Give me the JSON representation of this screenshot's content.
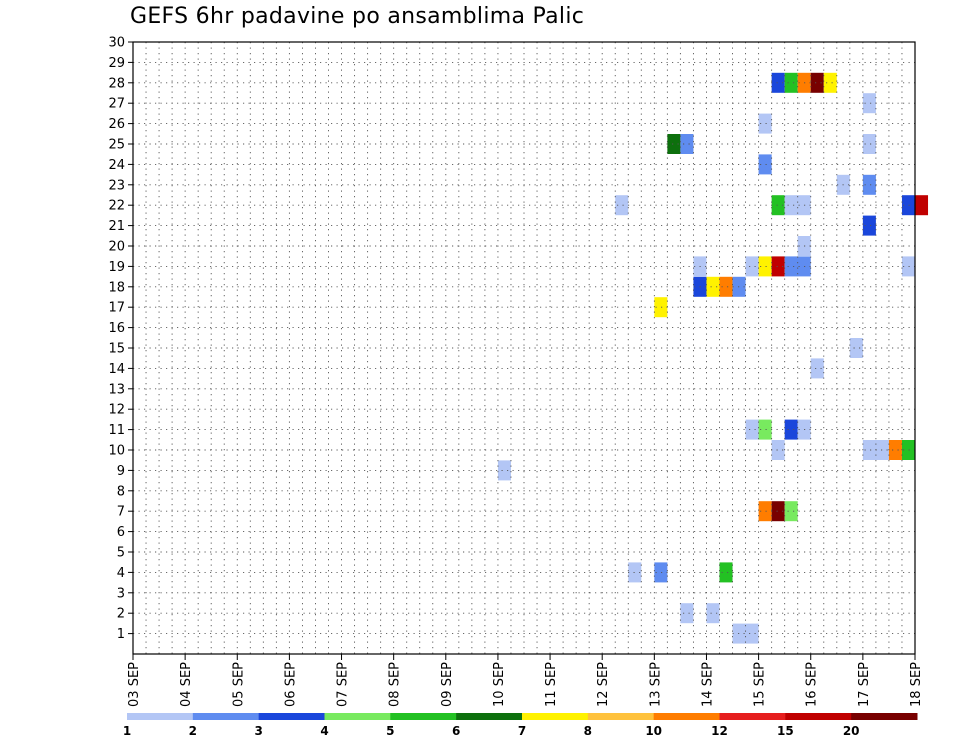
{
  "chart_data": {
    "type": "heatmap",
    "title": "GEFS 6hr padavine po ansamblima Palic",
    "x_dates": [
      "03 SEP",
      "04 SEP",
      "05 SEP",
      "06 SEP",
      "07 SEP",
      "08 SEP",
      "09 SEP",
      "10 SEP",
      "11 SEP",
      "12 SEP",
      "13 SEP",
      "14 SEP",
      "15 SEP",
      "16 SEP",
      "17 SEP",
      "18 SEP"
    ],
    "y_members": [
      1,
      2,
      3,
      4,
      5,
      6,
      7,
      8,
      9,
      10,
      11,
      12,
      13,
      14,
      15,
      16,
      17,
      18,
      19,
      20,
      21,
      22,
      23,
      24,
      25,
      26,
      27,
      28,
      29,
      30
    ],
    "x_unit": "6-hour step from 03 SEP",
    "ylim": [
      0,
      30
    ],
    "grid": true,
    "legend": {
      "position": "bottom",
      "labels": [
        "1",
        "2",
        "3",
        "4",
        "5",
        "6",
        "7",
        "8",
        "10",
        "12",
        "15",
        "20"
      ],
      "colors": [
        "#b3c6f5",
        "#5f8cf0",
        "#1a46db",
        "#78ea5f",
        "#23c123",
        "#0d700d",
        "#fff200",
        "#ffc23c",
        "#ff7d00",
        "#e61e1e",
        "#c00000",
        "#780000"
      ]
    },
    "cells": [
      {
        "member": 1,
        "step": 46,
        "span": 2,
        "value": 1
      },
      {
        "member": 2,
        "step": 42,
        "value": 1
      },
      {
        "member": 2,
        "step": 44,
        "value": 1
      },
      {
        "member": 4,
        "step": 38,
        "value": 1
      },
      {
        "member": 4,
        "step": 40,
        "value": 2
      },
      {
        "member": 4,
        "step": 45,
        "value": 5
      },
      {
        "member": 7,
        "step": 48,
        "value": 10
      },
      {
        "member": 7,
        "step": 49,
        "value": 20
      },
      {
        "member": 7,
        "step": 50,
        "value": 4
      },
      {
        "member": 9,
        "step": 28,
        "value": 1
      },
      {
        "member": 10,
        "step": 49,
        "value": 1
      },
      {
        "member": 10,
        "step": 56,
        "span": 2,
        "value": 1
      },
      {
        "member": 10,
        "step": 58,
        "value": 10
      },
      {
        "member": 10,
        "step": 59,
        "value": 5
      },
      {
        "member": 11,
        "step": 47,
        "value": 1
      },
      {
        "member": 11,
        "step": 48,
        "value": 4
      },
      {
        "member": 11,
        "step": 50,
        "value": 3
      },
      {
        "member": 11,
        "step": 51,
        "value": 1
      },
      {
        "member": 14,
        "step": 52,
        "value": 1
      },
      {
        "member": 15,
        "step": 55,
        "value": 1
      },
      {
        "member": 17,
        "step": 40,
        "value": 7
      },
      {
        "member": 18,
        "step": 43,
        "value": 3
      },
      {
        "member": 18,
        "step": 44,
        "value": 7
      },
      {
        "member": 18,
        "step": 45,
        "value": 10
      },
      {
        "member": 18,
        "step": 46,
        "value": 2
      },
      {
        "member": 19,
        "step": 43,
        "value": 1
      },
      {
        "member": 19,
        "step": 47,
        "value": 1
      },
      {
        "member": 19,
        "step": 48,
        "value": 7
      },
      {
        "member": 19,
        "step": 49,
        "value": 15
      },
      {
        "member": 19,
        "step": 50,
        "span": 2,
        "value": 2
      },
      {
        "member": 19,
        "step": 59,
        "value": 1
      },
      {
        "member": 20,
        "step": 51,
        "value": 1
      },
      {
        "member": 21,
        "step": 56,
        "value": 3
      },
      {
        "member": 22,
        "step": 37,
        "value": 1
      },
      {
        "member": 22,
        "step": 49,
        "value": 5
      },
      {
        "member": 22,
        "step": 50,
        "span": 2,
        "value": 1
      },
      {
        "member": 22,
        "step": 59,
        "value": 3
      },
      {
        "member": 22,
        "step": 60,
        "value": 15
      },
      {
        "member": 23,
        "step": 54,
        "value": 1
      },
      {
        "member": 23,
        "step": 56,
        "value": 2
      },
      {
        "member": 24,
        "step": 48,
        "value": 2
      },
      {
        "member": 25,
        "step": 41,
        "value": 6
      },
      {
        "member": 25,
        "step": 42,
        "value": 2
      },
      {
        "member": 25,
        "step": 56,
        "value": 1
      },
      {
        "member": 26,
        "step": 48,
        "value": 1
      },
      {
        "member": 27,
        "step": 56,
        "value": 1
      },
      {
        "member": 28,
        "step": 49,
        "value": 3
      },
      {
        "member": 28,
        "step": 50,
        "value": 5
      },
      {
        "member": 28,
        "step": 51,
        "value": 10
      },
      {
        "member": 28,
        "step": 52,
        "value": 20
      },
      {
        "member": 28,
        "step": 53,
        "value": 7
      }
    ]
  }
}
